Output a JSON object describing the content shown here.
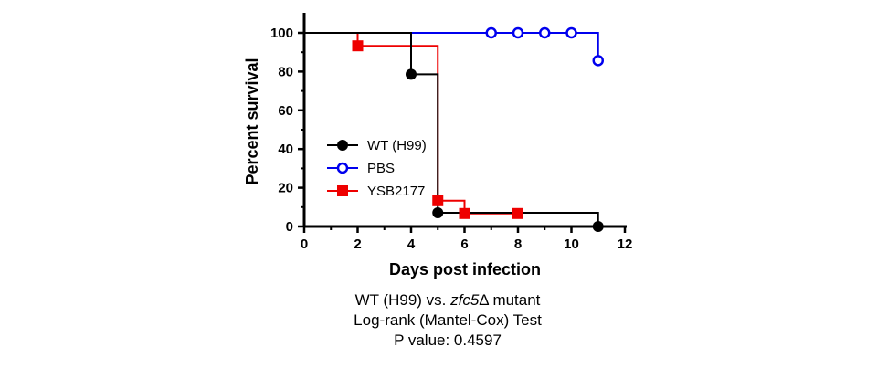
{
  "chart_data": {
    "type": "line",
    "xlabel": "Days post infection",
    "ylabel": "Percent survival",
    "xlim": [
      0,
      12
    ],
    "ylim": [
      0,
      100
    ],
    "xticks": [
      0,
      2,
      4,
      6,
      8,
      10,
      12
    ],
    "yticks": [
      0,
      20,
      40,
      60,
      80,
      100
    ],
    "grid": false,
    "legend_position": "left-center",
    "series": [
      {
        "name": "WT (H99)",
        "color": "#000000",
        "marker": "filled-circle",
        "steps": [
          [
            0,
            100
          ],
          [
            4,
            100
          ],
          [
            4,
            78.6
          ],
          [
            5,
            78.6
          ],
          [
            5,
            7.1
          ],
          [
            11,
            7.1
          ],
          [
            11,
            0
          ]
        ],
        "markers": [
          [
            4,
            78.6
          ],
          [
            5,
            7.1
          ],
          [
            11,
            0
          ]
        ]
      },
      {
        "name": "PBS",
        "color": "#0000ee",
        "marker": "open-circle",
        "steps": [
          [
            0,
            100
          ],
          [
            11,
            100
          ],
          [
            11,
            85.7
          ]
        ],
        "markers": [
          [
            7,
            100
          ],
          [
            8,
            100
          ],
          [
            9,
            100
          ],
          [
            10,
            100
          ],
          [
            11,
            85.7
          ]
        ]
      },
      {
        "name": "YSB2177",
        "color": "#ee0000",
        "marker": "filled-square",
        "steps": [
          [
            0,
            100
          ],
          [
            2,
            100
          ],
          [
            2,
            93.3
          ],
          [
            5,
            93.3
          ],
          [
            5,
            13.3
          ],
          [
            6,
            13.3
          ],
          [
            6,
            6.7
          ],
          [
            8,
            6.7
          ]
        ],
        "markers": [
          [
            2,
            93.3
          ],
          [
            5,
            13.3
          ],
          [
            6,
            6.7
          ],
          [
            8,
            6.7
          ]
        ]
      }
    ]
  },
  "caption": {
    "line1_prefix": "WT (H99) vs. ",
    "line1_italic": "zfc5",
    "line1_suffix": "Δ mutant",
    "line2": "Log-rank (Mantel-Cox) Test",
    "line3": "P value: 0.4597"
  }
}
